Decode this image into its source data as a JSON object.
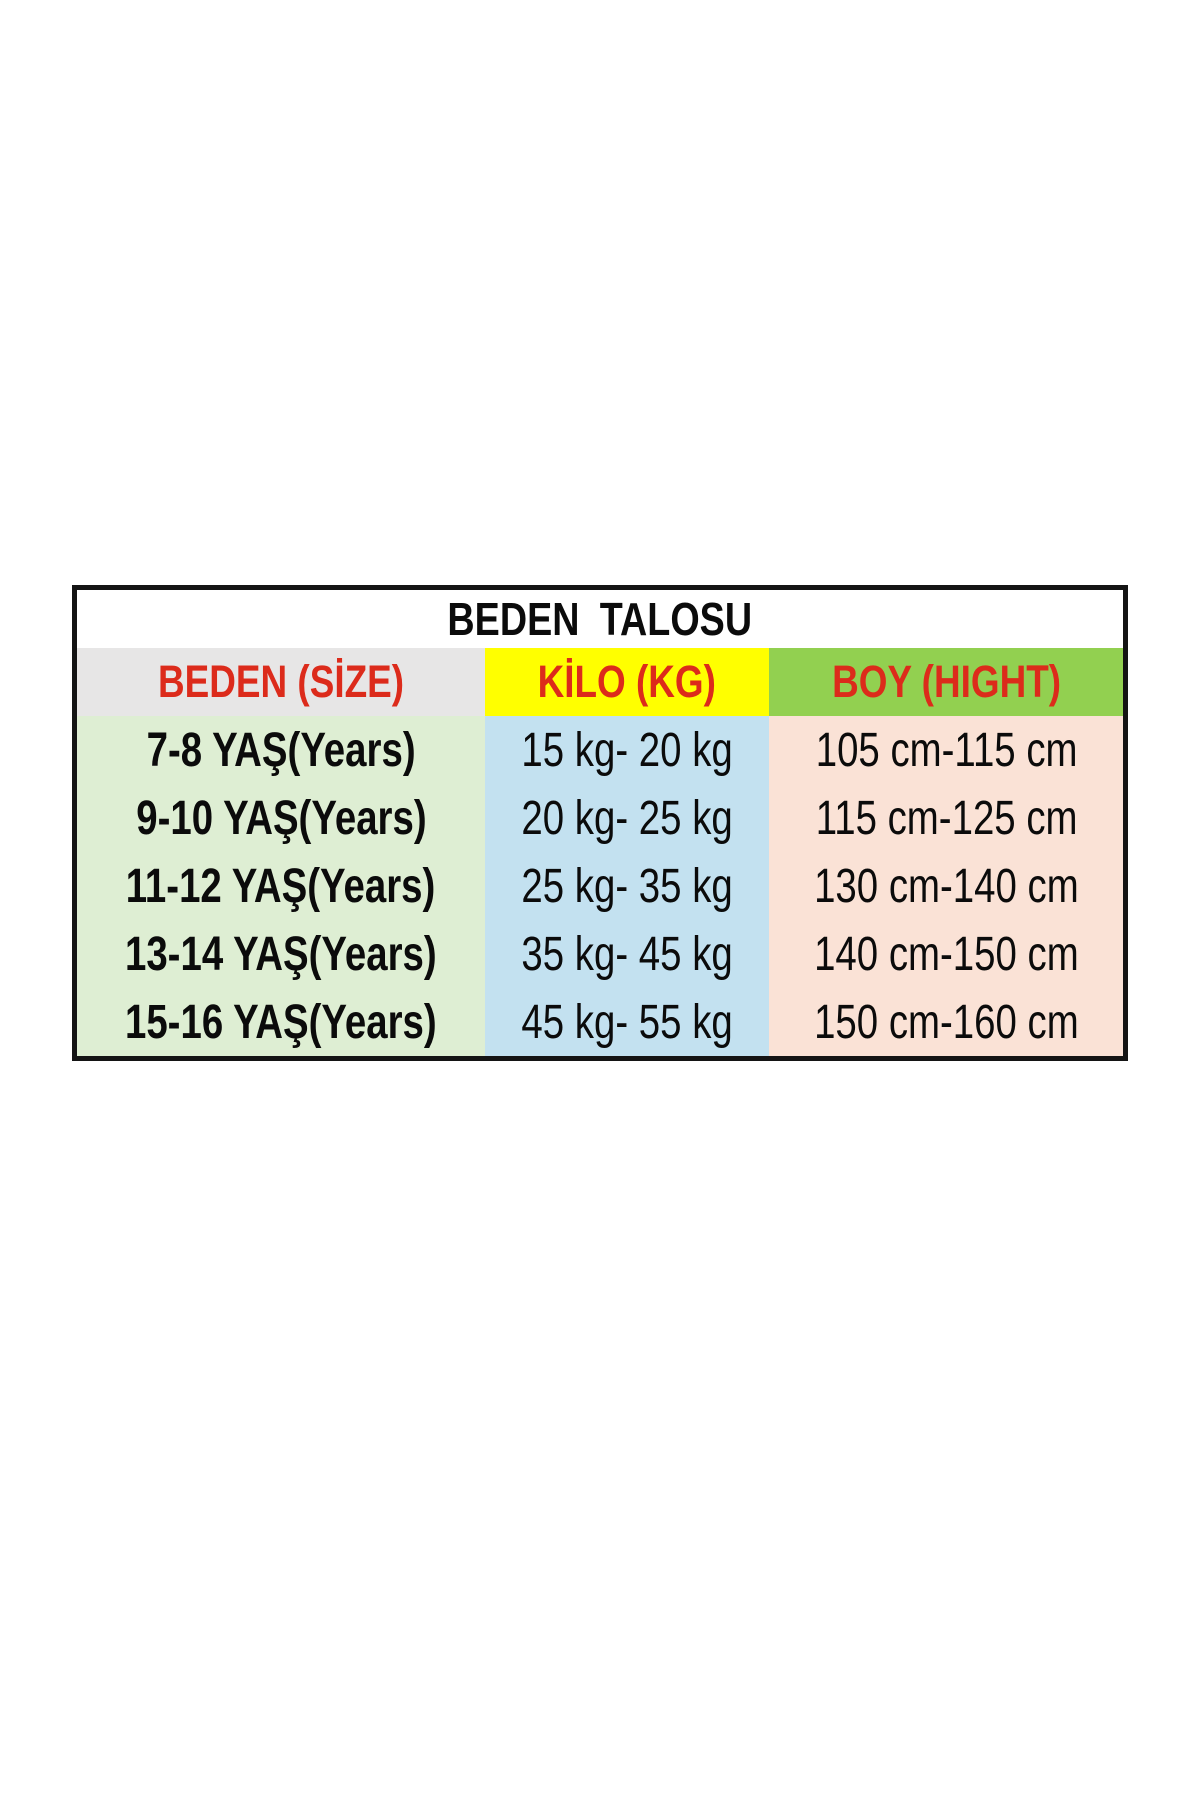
{
  "size_chart": {
    "title": "BEDEN TALOSU",
    "columns": [
      {
        "label": "BEDEN (SİZE)"
      },
      {
        "label": "KİLO (KG)"
      },
      {
        "label": "BOY (HIGHT)"
      }
    ],
    "rows": [
      {
        "size": "7-8 YAŞ(Years)",
        "weight": "15 kg- 20 kg",
        "height": "105 cm-115 cm"
      },
      {
        "size": "9-10 YAŞ(Years)",
        "weight": "20 kg- 25 kg",
        "height": "115 cm-125 cm"
      },
      {
        "size": "11-12 YAŞ(Years)",
        "weight": "25 kg- 35 kg",
        "height": "130 cm-140 cm"
      },
      {
        "size": "13-14 YAŞ(Years)",
        "weight": "35 kg- 45 kg",
        "height": "140 cm-150 cm"
      },
      {
        "size": "15-16 YAŞ(Years)",
        "weight": "45 kg- 55 kg",
        "height": "150 cm-160 cm"
      }
    ],
    "colors": {
      "border": "#141414",
      "title_text": "#0b0b0b",
      "header_text": "#dc2b1b",
      "header_size_bg": "#e7e6e6",
      "header_weight_bg": "#ffff00",
      "header_height_bg": "#92d050",
      "body_size_bg": "#deeed3",
      "body_weight_bg": "#c3e1f0",
      "body_height_bg": "#fae2d6",
      "body_text": "#0b0b0b"
    }
  }
}
